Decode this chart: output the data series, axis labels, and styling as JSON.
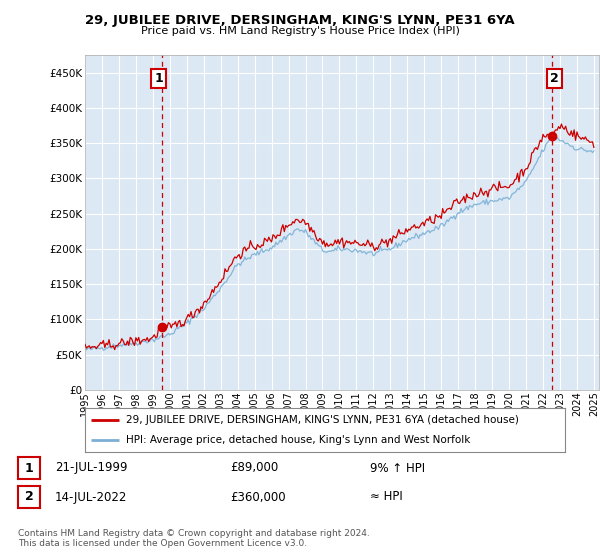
{
  "title": "29, JUBILEE DRIVE, DERSINGHAM, KING'S LYNN, PE31 6YA",
  "subtitle": "Price paid vs. HM Land Registry's House Price Index (HPI)",
  "legend_line1": "29, JUBILEE DRIVE, DERSINGHAM, KING'S LYNN, PE31 6YA (detached house)",
  "legend_line2": "HPI: Average price, detached house, King's Lynn and West Norfolk",
  "annotation1_date": "21-JUL-1999",
  "annotation1_price": "£89,000",
  "annotation1_hpi": "9% ↑ HPI",
  "annotation2_date": "14-JUL-2022",
  "annotation2_price": "£360,000",
  "annotation2_hpi": "≈ HPI",
  "footer": "Contains HM Land Registry data © Crown copyright and database right 2024.\nThis data is licensed under the Open Government Licence v3.0.",
  "ylim": [
    0,
    475000
  ],
  "yticks": [
    0,
    50000,
    100000,
    150000,
    200000,
    250000,
    300000,
    350000,
    400000,
    450000
  ],
  "ytick_labels": [
    "£0",
    "£50K",
    "£100K",
    "£150K",
    "£200K",
    "£250K",
    "£300K",
    "£350K",
    "£400K",
    "£450K"
  ],
  "background_color": "#ffffff",
  "plot_bg_color": "#dce9f5",
  "grid_color": "#ffffff",
  "red_color": "#cc0000",
  "blue_color": "#7bafd4",
  "sale1_x": 1999.55,
  "sale1_y": 89000,
  "sale2_x": 2022.54,
  "sale2_y": 360000,
  "xlim_start": 1995.0,
  "xlim_end": 2025.3,
  "xtick_years": [
    1995,
    1996,
    1997,
    1998,
    1999,
    2000,
    2001,
    2002,
    2003,
    2004,
    2005,
    2006,
    2007,
    2008,
    2009,
    2010,
    2011,
    2012,
    2013,
    2014,
    2015,
    2016,
    2017,
    2018,
    2019,
    2020,
    2021,
    2022,
    2023,
    2024,
    2025
  ]
}
